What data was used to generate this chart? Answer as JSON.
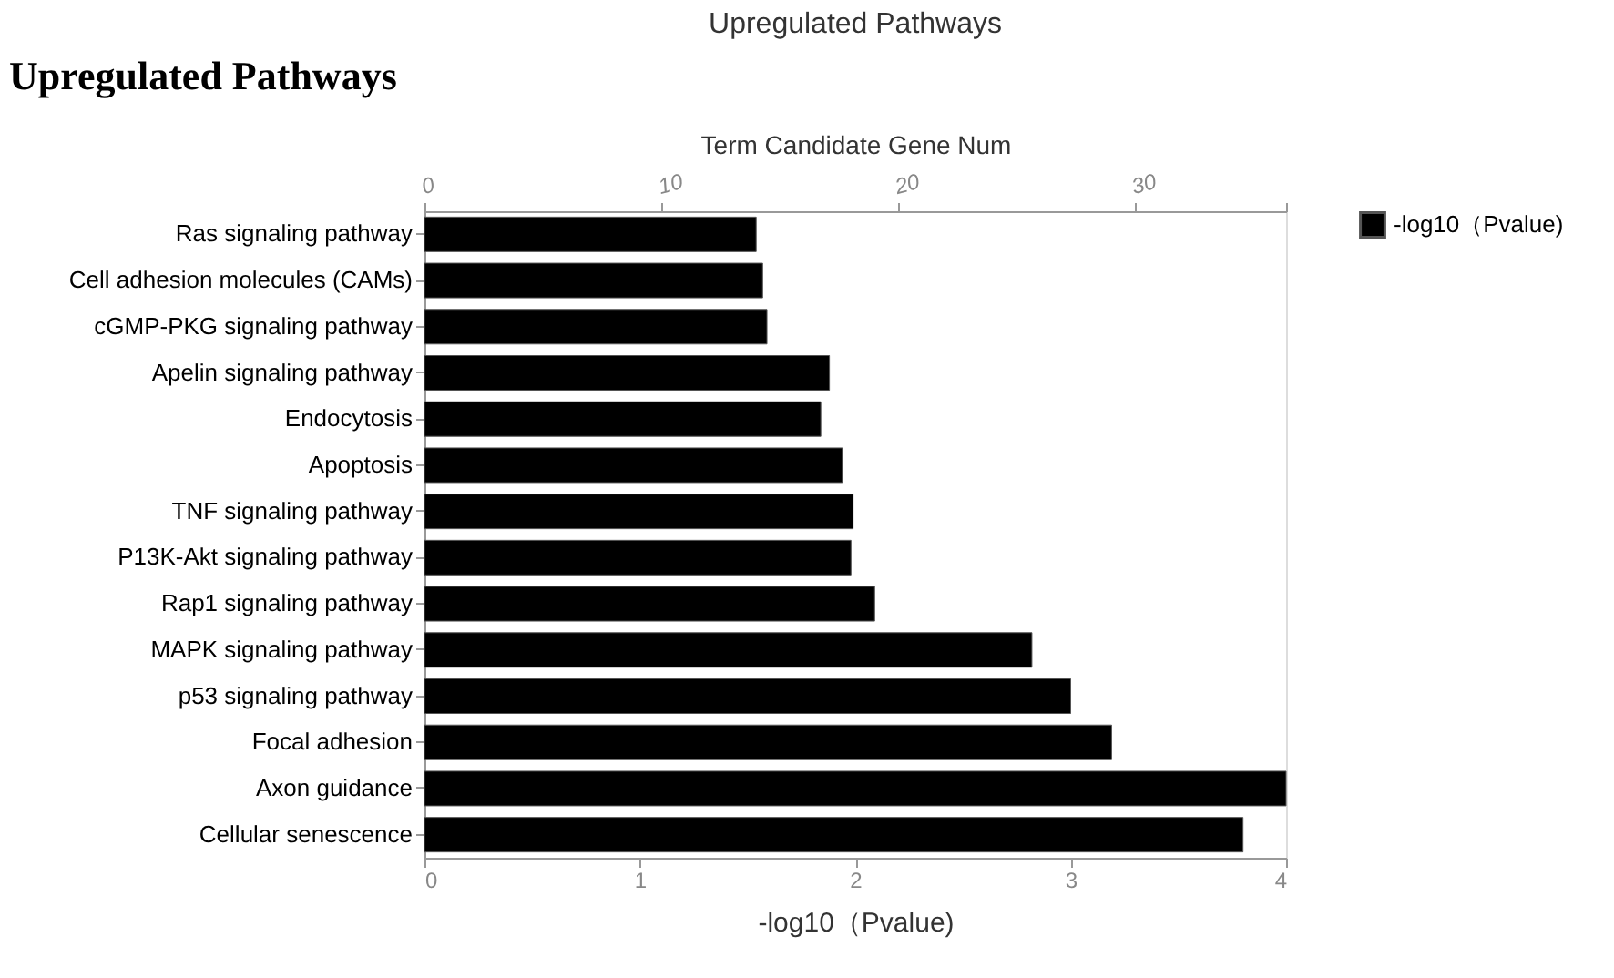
{
  "chart_data": {
    "type": "bar",
    "orientation": "horizontal",
    "title": "Upregulated Pathways",
    "categories": [
      "Ras signaling pathway",
      "Cell adhesion molecules (CAMs)",
      "cGMP-PKG signaling pathway",
      "Apelin signaling pathway",
      "Endocytosis",
      "Apoptosis",
      "TNF signaling pathway",
      "P13K-Akt signaling pathway",
      "Rap1 signaling pathway",
      "MAPK signaling pathway",
      "p53 signaling pathway",
      "Focal adhesion",
      "Axon guidance",
      "Cellular senescence"
    ],
    "series": [
      {
        "name": "-log10（Pvalue)",
        "color": "#000000",
        "values": [
          1.54,
          1.57,
          1.59,
          1.88,
          1.84,
          1.94,
          1.99,
          1.98,
          2.09,
          2.82,
          3.0,
          3.19,
          4.0,
          3.8
        ]
      }
    ],
    "xlabel": "-log10（Pvalue)",
    "xlim": [
      0,
      4
    ],
    "xticks": [
      0,
      1,
      2,
      3,
      4
    ],
    "x2label": "Term Candidate Gene Num",
    "x2lim": [
      0,
      36.4
    ],
    "x2ticks": [
      0,
      10,
      20,
      30,
      {
        "value": 36.4,
        "label": null
      }
    ],
    "annotations": [
      "Upregulated Pathways"
    ],
    "legend": "top right",
    "grid": false
  }
}
